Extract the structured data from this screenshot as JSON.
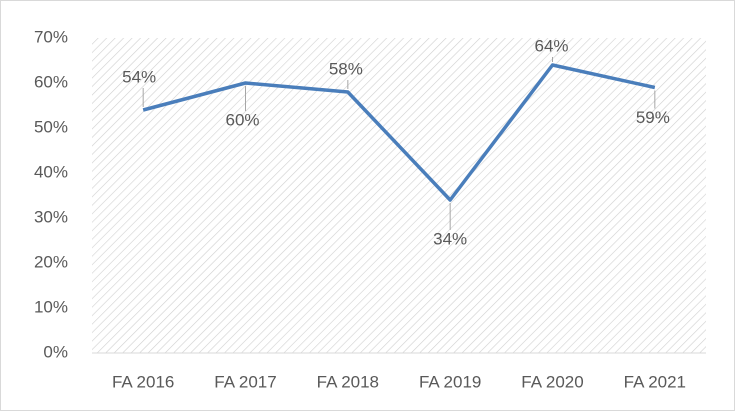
{
  "chart_data": {
    "type": "line",
    "categories": [
      "FA 2016",
      "FA 2017",
      "FA 2018",
      "FA 2019",
      "FA 2020",
      "FA 2021"
    ],
    "series": [
      {
        "color": "#4a7ebb",
        "values": [
          54,
          60,
          58,
          34,
          64,
          59
        ],
        "value_labels": [
          "54%",
          "60%",
          "58%",
          "34%",
          "64%",
          "59%"
        ]
      }
    ],
    "ylim": [
      0,
      70
    ],
    "yticks": [
      {
        "value": 0,
        "label": "0%"
      },
      {
        "value": 10,
        "label": "10%"
      },
      {
        "value": 20,
        "label": "20%"
      },
      {
        "value": 30,
        "label": "30%"
      },
      {
        "value": 40,
        "label": "40%"
      },
      {
        "value": 50,
        "label": "50%"
      },
      {
        "value": 60,
        "label": "60%"
      },
      {
        "value": 70,
        "label": "70%"
      }
    ],
    "grid": false
  }
}
